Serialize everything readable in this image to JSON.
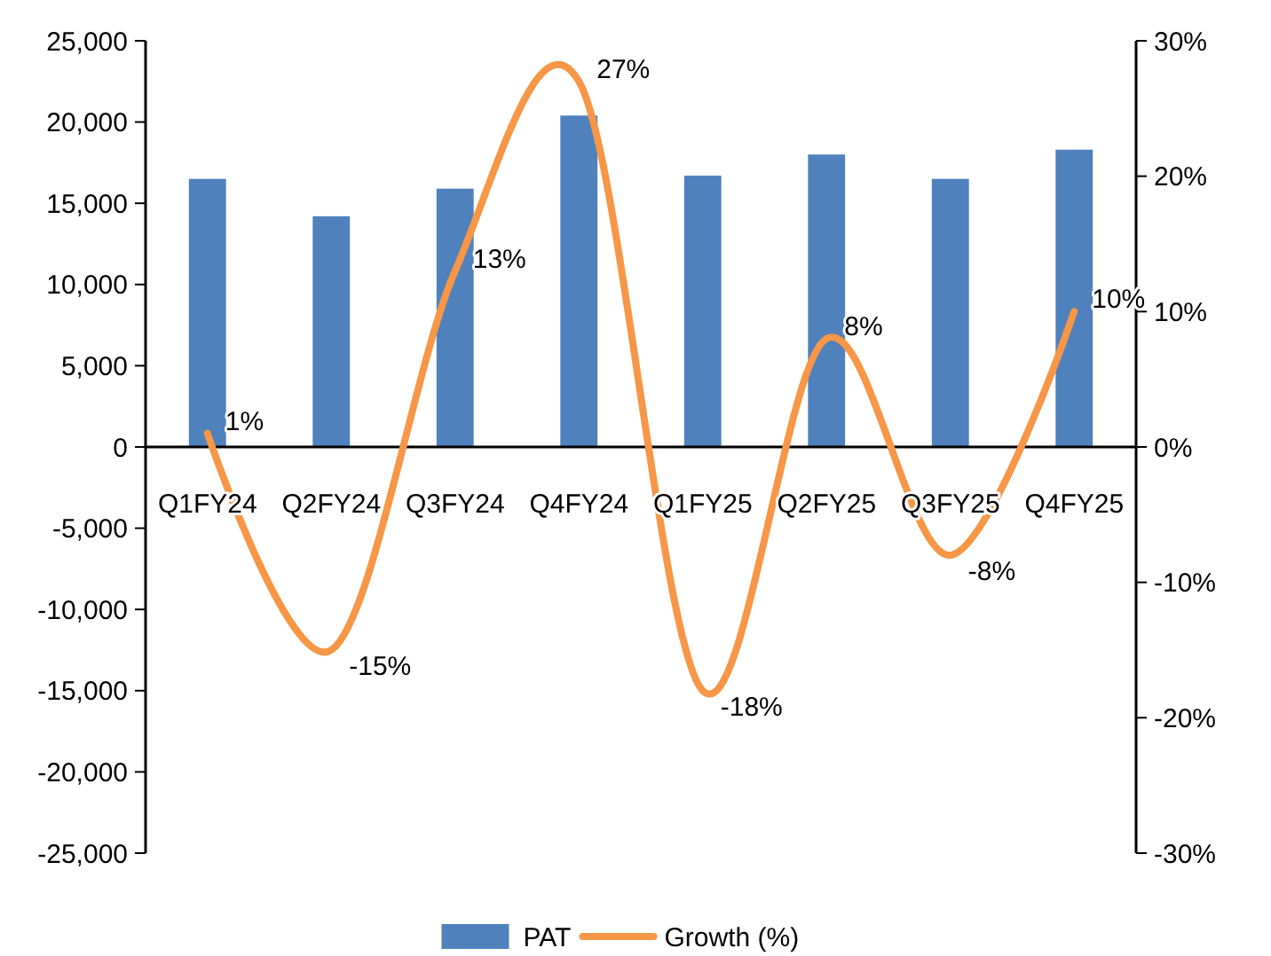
{
  "chart_data": {
    "type": "bar",
    "categories": [
      "Q1FY24",
      "Q2FY24",
      "Q3FY24",
      "Q4FY24",
      "Q1FY25",
      "Q2FY25",
      "Q3FY25",
      "Q4FY25"
    ],
    "series": [
      {
        "name": "PAT",
        "color": "#4f81bd",
        "values": [
          16500,
          14200,
          15900,
          20400,
          16700,
          18000,
          16500,
          18300
        ]
      },
      {
        "name": "Growth (%)",
        "type": "line",
        "axis": "y2",
        "color": "#f79646",
        "values": [
          1,
          -15,
          13,
          27,
          -18,
          8,
          -8,
          10
        ],
        "value_labels": [
          "1%",
          "-15%",
          "13%",
          "27%",
          "-18%",
          "8%",
          "-8%",
          "10%"
        ]
      }
    ],
    "ylim": [
      -25000,
      25000
    ],
    "yticks": [
      {
        "value": -25000,
        "label": "-25,000"
      },
      {
        "value": -20000,
        "label": "-20,000"
      },
      {
        "value": -15000,
        "label": "-15,000"
      },
      {
        "value": -10000,
        "label": "-10,000"
      },
      {
        "value": -5000,
        "label": "-5,000"
      },
      0,
      {
        "value": 5000,
        "label": "5,000"
      },
      {
        "value": 10000,
        "label": "10,000"
      },
      {
        "value": 15000,
        "label": "15,000"
      },
      {
        "value": 20000,
        "label": "20,000"
      },
      {
        "value": 25000,
        "label": "25,000"
      }
    ],
    "y2lim": [
      -30,
      30
    ],
    "y2ticks": [
      {
        "value": -30,
        "label": "-30%"
      },
      {
        "value": -20,
        "label": "-20%"
      },
      {
        "value": -10,
        "label": "-10%"
      },
      {
        "value": 0,
        "label": "0%"
      },
      {
        "value": 10,
        "label": "10%"
      },
      {
        "value": 20,
        "label": "20%"
      },
      {
        "value": 30,
        "label": "30%"
      }
    ],
    "legend": "bottom",
    "grid": false,
    "marker": "none"
  }
}
